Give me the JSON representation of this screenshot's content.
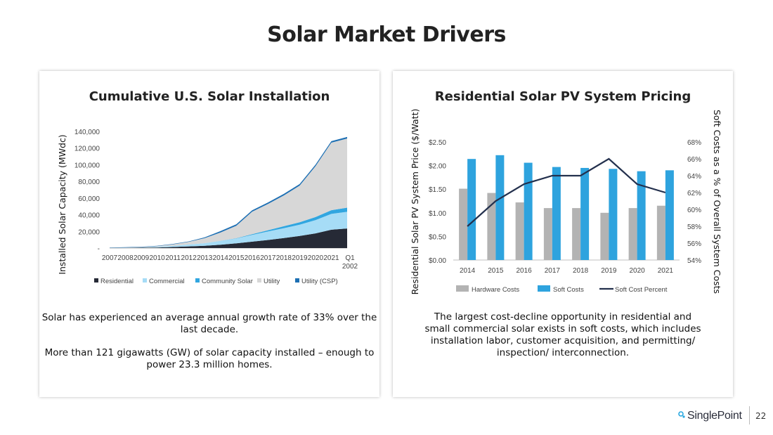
{
  "slide_title": "Solar Market Drivers",
  "page_number": "22",
  "logo": {
    "text": "SinglePoint",
    "accent": "#29a8e0"
  },
  "left_panel": {
    "description": [
      "Solar has experienced an average annual growth rate of 33% over the last decade.",
      "More than 121 gigawatts (GW) of solar capacity installed – enough to power 23.3 million homes."
    ]
  },
  "right_panel": {
    "description": "The largest cost-decline opportunity in residential and small commercial solar exists in soft costs, which includes installation labor, customer acquisition, and permitting/ inspection/ interconnection."
  },
  "chart_data": [
    {
      "type": "area",
      "stacked": true,
      "title": "Cumulative U.S. Solar Installation",
      "ylabel": "Installed Solar Capacity (MWdc)",
      "ylim": [
        0,
        140000
      ],
      "ytick_labels": [
        "-",
        "20,000",
        "40,000",
        "60,000",
        "80,000",
        "100,000",
        "120,000",
        "140,000"
      ],
      "categories": [
        "2007",
        "2008",
        "2009",
        "2010",
        "2011",
        "2012",
        "2013",
        "2014",
        "2015",
        "2016",
        "2017",
        "2018",
        "2019",
        "2020",
        "2021",
        "Q1 2002"
      ],
      "series": [
        {
          "name": "Residential",
          "color": "#262a36",
          "values": [
            100,
            200,
            400,
            700,
            1300,
            2000,
            2800,
            4000,
            5700,
            7700,
            9700,
            12000,
            14500,
            17600,
            22000,
            23500
          ]
        },
        {
          "name": "Commercial",
          "color": "#a6dcf6",
          "values": [
            100,
            200,
            400,
            800,
            1400,
            2300,
            3100,
            4500,
            5800,
            8100,
            10200,
            11900,
            13500,
            16000,
            19000,
            20000
          ]
        },
        {
          "name": "Community Solar",
          "color": "#31a6e0",
          "values": [
            0,
            0,
            0,
            0,
            0,
            0,
            0,
            100,
            300,
            800,
            1500,
            2300,
            3000,
            3600,
            4500,
            5000
          ]
        },
        {
          "name": "Utility",
          "color": "#d7d7d7",
          "values": [
            100,
            200,
            400,
            900,
            1800,
            3200,
            6000,
            10000,
            15000,
            27000,
            31500,
            37000,
            44000,
            61000,
            81000,
            83000
          ]
        },
        {
          "name": "Utility (CSP)",
          "color": "#1d6fb3",
          "values": [
            400,
            400,
            400,
            400,
            450,
            500,
            900,
            1700,
            1800,
            1800,
            1800,
            1800,
            1800,
            1800,
            1800,
            1800
          ]
        }
      ]
    },
    {
      "type": "bar",
      "title": "Residential Solar PV System Pricing",
      "ylabel": "Residential Solar PV System Price ($/Watt)",
      "y2label": "Soft Costs as a % of Overall System Costs",
      "ylim": [
        0,
        2.5
      ],
      "y2lim": [
        54,
        68
      ],
      "ytick_labels": [
        "$0.00",
        "$0.50",
        "$1.00",
        "$1.50",
        "$2.00",
        "$2.50"
      ],
      "y2tick_labels": [
        "54%",
        "56%",
        "58%",
        "60%",
        "62%",
        "64%",
        "66%",
        "68%"
      ],
      "categories": [
        "2014",
        "2015",
        "2016",
        "2017",
        "2018",
        "2019",
        "2020",
        "2021"
      ],
      "series": [
        {
          "name": "Hardware Costs",
          "kind": "bar",
          "color": "#b3b3b3",
          "values": [
            1.51,
            1.42,
            1.22,
            1.1,
            1.1,
            1.0,
            1.1,
            1.15
          ]
        },
        {
          "name": "Soft Costs",
          "kind": "bar",
          "color": "#2ea3de",
          "values": [
            2.14,
            2.22,
            2.06,
            1.97,
            1.95,
            1.93,
            1.88,
            1.9
          ]
        },
        {
          "name": "Soft Cost Percent",
          "kind": "line",
          "axis": "y2",
          "color": "#23304d",
          "values": [
            58,
            61,
            63,
            64,
            64,
            66,
            63,
            62
          ]
        }
      ]
    }
  ]
}
